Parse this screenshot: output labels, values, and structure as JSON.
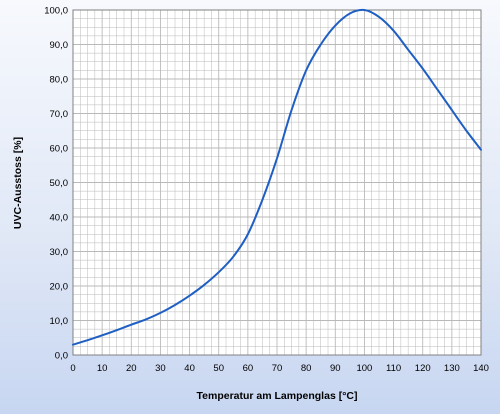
{
  "chart_data": {
    "type": "line",
    "title": "",
    "xlabel": "Temperatur am Lampenglas [°C]",
    "ylabel": "UVC-Ausstoss [%]",
    "xlim": [
      0,
      140
    ],
    "ylim": [
      0,
      100
    ],
    "x_ticks": [
      0,
      10,
      20,
      30,
      40,
      50,
      60,
      70,
      80,
      90,
      100,
      110,
      120,
      130,
      140
    ],
    "x_tick_labels": [
      "0",
      "10",
      "20",
      "30",
      "40",
      "50",
      "60",
      "70",
      "80",
      "90",
      "100",
      "110",
      "120",
      "130",
      "140"
    ],
    "y_ticks": [
      0,
      10,
      20,
      30,
      40,
      50,
      60,
      70,
      80,
      90,
      100
    ],
    "y_tick_labels": [
      "0,0",
      "10,0",
      "20,0",
      "30,0",
      "40,0",
      "50,0",
      "60,0",
      "70,0",
      "80,0",
      "90,0",
      "100,0"
    ],
    "grid": true,
    "minor_grid_step_x": 2.5,
    "minor_grid_step_y": 2.5,
    "line_color": "#1f5fc4",
    "grid_color": "#b9b9b9",
    "background_gradient": [
      "#f7f9fd",
      "#c7d6f1"
    ],
    "series": [
      {
        "x": [
          0,
          5,
          10,
          15,
          20,
          25,
          30,
          35,
          40,
          45,
          50,
          55,
          60,
          65,
          70,
          75,
          80,
          85,
          90,
          95,
          100,
          105,
          110,
          115,
          120,
          125,
          130,
          135,
          140
        ],
        "values": [
          3.0,
          4.3,
          5.7,
          7.2,
          8.8,
          10.3,
          12.2,
          14.5,
          17.2,
          20.3,
          24.0,
          28.5,
          35.0,
          45.0,
          57.0,
          71.0,
          82.5,
          90.0,
          95.5,
          99.0,
          100.0,
          98.0,
          94.0,
          88.5,
          83.0,
          77.0,
          71.0,
          65.0,
          59.5
        ]
      }
    ]
  }
}
